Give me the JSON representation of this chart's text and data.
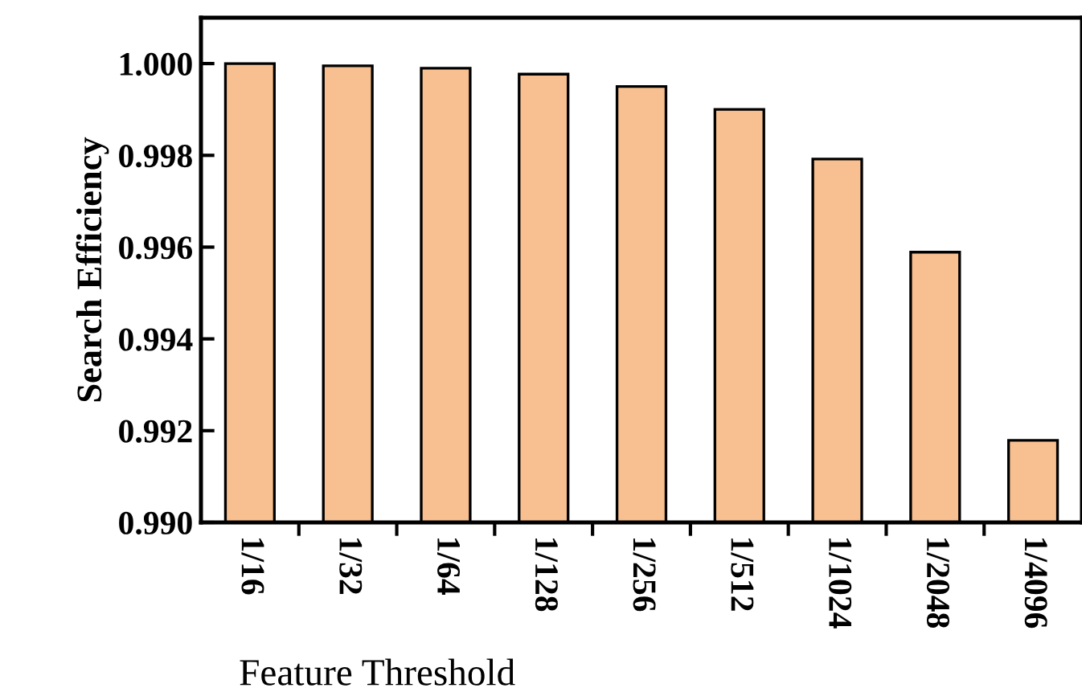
{
  "chart_data": {
    "type": "bar",
    "xlabel": "Feature Threshold",
    "ylabel": "Search Efficiency",
    "categories": [
      "1/16",
      "1/32",
      "1/64",
      "1/128",
      "1/256",
      "1/512",
      "1/1024",
      "1/2048",
      "1/4096"
    ],
    "values": [
      1.0,
      0.99995,
      0.9999,
      0.99977,
      0.9995,
      0.999,
      0.99792,
      0.99589,
      0.99179
    ],
    "color": "#f8c090",
    "ylim": [
      0.99,
      1.001
    ],
    "yticks": [
      {
        "value": 0.99,
        "label": "0.990"
      },
      {
        "value": 0.992,
        "label": "0.992"
      },
      {
        "value": 0.994,
        "label": "0.994"
      },
      {
        "value": 0.996,
        "label": "0.996"
      },
      {
        "value": 0.998,
        "label": "0.998"
      },
      {
        "value": 1.0,
        "label": "1.000"
      }
    ],
    "grid": false
  }
}
